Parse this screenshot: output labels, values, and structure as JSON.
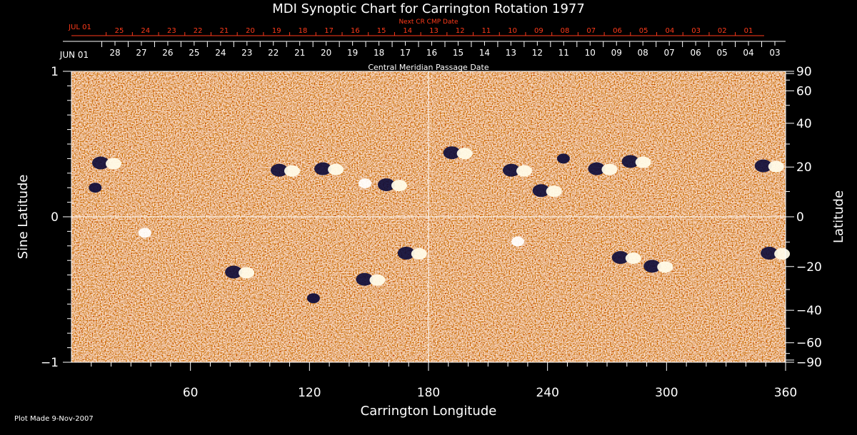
{
  "chart_data": {
    "type": "heatmap",
    "title": "MDI Synoptic Chart for Carrington Rotation 1977",
    "xlabel": "Carrington Longitude",
    "ylabel_left": "Sine Latitude",
    "ylabel_right": "Latitude",
    "xlim": [
      0,
      360
    ],
    "ylim": [
      -1,
      1
    ],
    "x_ticks": [
      60,
      120,
      180,
      240,
      300,
      360
    ],
    "y_ticks_left": [
      {
        "v": 1,
        "label": "1"
      },
      {
        "v": 0,
        "label": "0"
      },
      {
        "v": -1,
        "label": "−1"
      }
    ],
    "y_ticks_right": [
      {
        "lat": 90,
        "label": "90"
      },
      {
        "lat": 60,
        "label": "60"
      },
      {
        "lat": 40,
        "label": "40"
      },
      {
        "lat": 20,
        "label": "20"
      },
      {
        "lat": 0,
        "label": "0"
      },
      {
        "lat": -20,
        "label": "−20"
      },
      {
        "lat": -40,
        "label": "−40"
      },
      {
        "lat": -60,
        "label": "−60"
      },
      {
        "lat": -90,
        "label": "−90"
      }
    ],
    "reference_lines": {
      "longitude": 180,
      "sine_latitude": 0
    },
    "top_axis": {
      "label": "Central Meridian Passage Date",
      "start_label": "JUN 01",
      "dates": [
        "28",
        "27",
        "26",
        "25",
        "24",
        "23",
        "22",
        "21",
        "20",
        "19",
        "18",
        "17",
        "16",
        "15",
        "14",
        "13",
        "12",
        "11",
        "10",
        "09",
        "08",
        "07",
        "06",
        "05",
        "04",
        "03"
      ]
    },
    "next_cr_axis": {
      "label": "Next CR CMP Date",
      "start_label": "JUL 01",
      "dates": [
        "25",
        "24",
        "23",
        "22",
        "21",
        "20",
        "19",
        "18",
        "17",
        "16",
        "15",
        "14",
        "13",
        "12",
        "11",
        "10",
        "09",
        "08",
        "07",
        "06",
        "05",
        "04",
        "03",
        "02",
        "01"
      ]
    },
    "colormap": {
      "low": "#10104a",
      "mid": "#e84a10",
      "high": "#ffffff"
    },
    "active_regions": [
      {
        "lon": 18,
        "sinlat": 0.37,
        "polarity": "bipolar"
      },
      {
        "lon": 12,
        "sinlat": 0.2,
        "polarity": "negative"
      },
      {
        "lon": 37,
        "sinlat": -0.11,
        "polarity": "positive"
      },
      {
        "lon": 108,
        "sinlat": 0.32,
        "polarity": "bipolar"
      },
      {
        "lon": 130,
        "sinlat": 0.33,
        "polarity": "bipolar"
      },
      {
        "lon": 148,
        "sinlat": 0.23,
        "polarity": "positive"
      },
      {
        "lon": 162,
        "sinlat": 0.22,
        "polarity": "bipolar"
      },
      {
        "lon": 85,
        "sinlat": -0.38,
        "polarity": "bipolar"
      },
      {
        "lon": 122,
        "sinlat": -0.56,
        "polarity": "negative"
      },
      {
        "lon": 151,
        "sinlat": -0.43,
        "polarity": "bipolar"
      },
      {
        "lon": 172,
        "sinlat": -0.25,
        "polarity": "bipolar"
      },
      {
        "lon": 195,
        "sinlat": 0.44,
        "polarity": "bipolar"
      },
      {
        "lon": 225,
        "sinlat": 0.32,
        "polarity": "bipolar"
      },
      {
        "lon": 240,
        "sinlat": 0.18,
        "polarity": "bipolar"
      },
      {
        "lon": 248,
        "sinlat": 0.4,
        "polarity": "negative"
      },
      {
        "lon": 268,
        "sinlat": 0.33,
        "polarity": "bipolar"
      },
      {
        "lon": 285,
        "sinlat": 0.38,
        "polarity": "bipolar"
      },
      {
        "lon": 225,
        "sinlat": -0.17,
        "polarity": "positive"
      },
      {
        "lon": 280,
        "sinlat": -0.28,
        "polarity": "bipolar"
      },
      {
        "lon": 296,
        "sinlat": -0.34,
        "polarity": "bipolar"
      },
      {
        "lon": 352,
        "sinlat": 0.35,
        "polarity": "bipolar"
      },
      {
        "lon": 355,
        "sinlat": -0.25,
        "polarity": "bipolar"
      }
    ]
  },
  "footer": {
    "plot_made": "Plot Made  9-Nov-2007"
  }
}
